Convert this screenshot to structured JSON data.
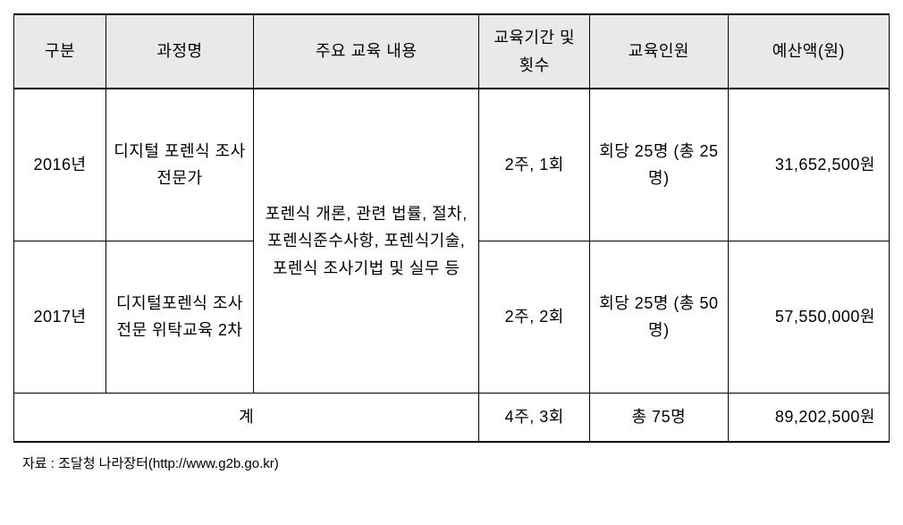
{
  "table": {
    "headers": {
      "col1": "구분",
      "col2": "과정명",
      "col3": "주요 교육 내용",
      "col4": "교육기간 및 횟수",
      "col5": "교육인원",
      "col6": "예산액(원)"
    },
    "rows": [
      {
        "year": "2016년",
        "course": "디지털 포렌식 조사 전문가",
        "period": "2주, 1회",
        "people": "회당 25명 (총 25명)",
        "budget": "31,652,500원"
      },
      {
        "year": "2017년",
        "course": "디지털포렌식 조사 전문 위탁교육 2차",
        "period": "2주, 2회",
        "people": "회당 25명 (총 50명)",
        "budget": "57,550,000원"
      }
    ],
    "merged_content": "포렌식 개론, 관련 법률, 절차, 포렌식준수사항, 포렌식기술, 포렌식 조사기법 및 실무 등",
    "total": {
      "label": "계",
      "period": "4주, 3회",
      "people": "총 75명",
      "budget": "89,202,500원"
    }
  },
  "footnote": "자료 : 조달청 나라장터(http://www.g2b.go.kr)",
  "colors": {
    "header_bg": "#e9e9e9",
    "border": "#000000",
    "text": "#000000",
    "bg": "#ffffff"
  },
  "fonts": {
    "cell_size": 18,
    "footnote_size": 15
  },
  "col_widths": {
    "gubun": 100,
    "course": 160,
    "content": 245,
    "period": 120,
    "people": 150,
    "budget": 175
  }
}
